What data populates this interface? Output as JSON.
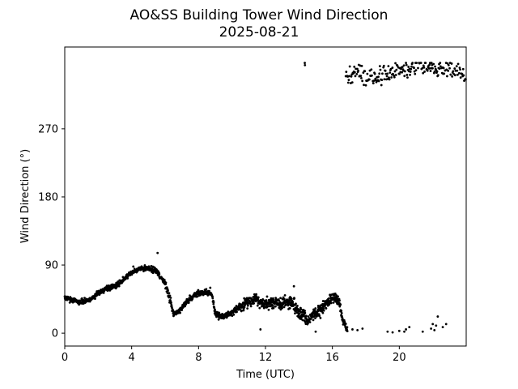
{
  "chart_data": {
    "type": "scatter",
    "title": "AO&SS Building Tower Wind Direction",
    "subtitle": "2025-08-21",
    "xlabel": "Time (UTC)",
    "ylabel": "Wind Direction (°)",
    "xlim": [
      0,
      24
    ],
    "ylim": [
      -17,
      378
    ],
    "x_ticks": [
      0,
      4,
      8,
      12,
      16,
      20
    ],
    "y_ticks": [
      0,
      90,
      180,
      270
    ],
    "grid": false,
    "marker_color": "#000000",
    "trend": [
      [
        0.0,
        47
      ],
      [
        0.5,
        43
      ],
      [
        1.0,
        41
      ],
      [
        1.5,
        44
      ],
      [
        2.0,
        53
      ],
      [
        2.5,
        59
      ],
      [
        3.0,
        62
      ],
      [
        3.5,
        70
      ],
      [
        4.0,
        80
      ],
      [
        4.5,
        85
      ],
      [
        5.0,
        86
      ],
      [
        5.5,
        82
      ],
      [
        6.0,
        65
      ],
      [
        6.3,
        45
      ],
      [
        6.5,
        25
      ],
      [
        6.8,
        28
      ],
      [
        7.2,
        40
      ],
      [
        7.6,
        47
      ],
      [
        8.0,
        53
      ],
      [
        8.5,
        54
      ],
      [
        8.8,
        52
      ],
      [
        9.0,
        25
      ],
      [
        9.5,
        22
      ],
      [
        10.0,
        27
      ],
      [
        10.5,
        35
      ],
      [
        11.0,
        42
      ],
      [
        11.5,
        44
      ],
      [
        12.0,
        38
      ],
      [
        12.5,
        40
      ],
      [
        13.0,
        38
      ],
      [
        13.5,
        42
      ],
      [
        14.0,
        28
      ],
      [
        14.5,
        18
      ],
      [
        15.0,
        25
      ],
      [
        15.5,
        35
      ],
      [
        16.0,
        48
      ],
      [
        16.4,
        42
      ],
      [
        16.6,
        18
      ],
      [
        16.9,
        5
      ]
    ],
    "trend_spread": [
      5,
      5,
      5,
      5,
      5,
      5,
      5,
      5,
      5,
      5,
      6,
      6,
      8,
      6,
      5,
      6,
      6,
      6,
      5,
      5,
      6,
      5,
      5,
      6,
      10,
      10,
      10,
      12,
      12,
      12,
      14,
      14,
      12,
      12,
      12,
      10,
      10,
      6,
      5
    ],
    "sparse_low_points": [
      [
        17.2,
        5
      ],
      [
        17.5,
        4
      ],
      [
        17.8,
        6
      ],
      [
        19.3,
        2
      ],
      [
        19.6,
        1
      ],
      [
        20.0,
        3
      ],
      [
        20.4,
        5
      ],
      [
        20.6,
        8
      ],
      [
        21.4,
        2
      ],
      [
        21.9,
        6
      ],
      [
        22.0,
        12
      ],
      [
        22.2,
        10
      ],
      [
        22.3,
        22
      ],
      [
        22.6,
        8
      ],
      [
        22.8,
        12
      ],
      [
        22.1,
        4
      ],
      [
        20.3,
        2
      ]
    ],
    "upper_trend": [
      [
        16.8,
        340
      ],
      [
        17.5,
        345
      ],
      [
        18.0,
        340
      ],
      [
        18.5,
        338
      ],
      [
        19.0,
        341
      ],
      [
        19.5,
        345
      ],
      [
        20.0,
        350
      ],
      [
        20.5,
        348
      ],
      [
        21.0,
        352
      ],
      [
        21.5,
        355
      ],
      [
        22.0,
        350
      ],
      [
        22.5,
        348
      ],
      [
        23.0,
        350
      ],
      [
        23.5,
        345
      ],
      [
        24.0,
        342
      ]
    ],
    "upper_spread": 12,
    "outliers": [
      [
        14.35,
        357
      ],
      [
        14.36,
        354
      ],
      [
        5.55,
        106
      ],
      [
        4.1,
        88
      ],
      [
        8.7,
        60
      ],
      [
        13.7,
        62
      ],
      [
        9.2,
        18
      ],
      [
        11.7,
        5
      ],
      [
        15.0,
        2
      ]
    ]
  }
}
